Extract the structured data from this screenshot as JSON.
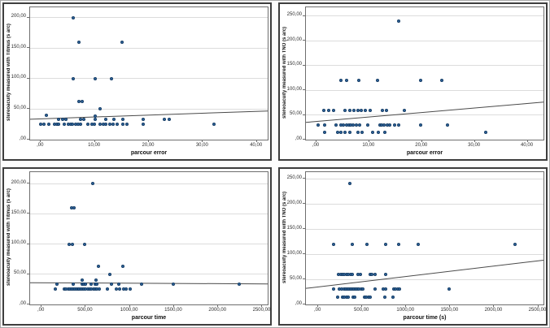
{
  "figure": {
    "description": "Grid of four SPSS-style scatterplots of stereoacuity versus parcour performance",
    "background_color": "#ffffff",
    "panel_border_color": "#3e3e3e",
    "grid_color": "#dcdcdc",
    "frame_color": "#6e6e6e",
    "point_fill_color": "#3168a0",
    "point_stroke_color": "#163d66",
    "fit_line_color": "#4a4a4a"
  },
  "chart_data": [
    {
      "type": "scatter",
      "title": "",
      "xlabel": "parcour error",
      "ylabel": "stereoacuity measured with Titmus (s arc)",
      "xlim": [
        -2,
        42
      ],
      "ylim": [
        0,
        217
      ],
      "grid": "horizontal",
      "legend": "none",
      "x_ticks": [
        {
          "v": 0,
          "label": ",00"
        },
        {
          "v": 10,
          "label": "10,00"
        },
        {
          "v": 20,
          "label": "20,00"
        },
        {
          "v": 30,
          "label": "30,00"
        },
        {
          "v": 40,
          "label": "40,00"
        }
      ],
      "y_ticks": [
        {
          "v": 0,
          "label": ",00"
        },
        {
          "v": 50,
          "label": "50,00"
        },
        {
          "v": 100,
          "label": "100,00"
        },
        {
          "v": 150,
          "label": "150,00"
        },
        {
          "v": 200,
          "label": "200,00"
        }
      ],
      "fit_line": {
        "x1": -2,
        "y1": 33.5,
        "x2": 42,
        "y2": 47
      },
      "points": [
        [
          6,
          200
        ],
        [
          7,
          160
        ],
        [
          15,
          160
        ],
        [
          6,
          100
        ],
        [
          10,
          100
        ],
        [
          13,
          100
        ],
        [
          7,
          63
        ],
        [
          7.6,
          63
        ],
        [
          11,
          50
        ],
        [
          1,
          40
        ],
        [
          10,
          39
        ],
        [
          3.2,
          33
        ],
        [
          4,
          33
        ],
        [
          4.7,
          33
        ],
        [
          7.4,
          33
        ],
        [
          8,
          33
        ],
        [
          10,
          33
        ],
        [
          12,
          33
        ],
        [
          13.5,
          33
        ],
        [
          15.2,
          33
        ],
        [
          19,
          33
        ],
        [
          22.8,
          33
        ],
        [
          23.8,
          33
        ],
        [
          0,
          25
        ],
        [
          0.6,
          25
        ],
        [
          1.4,
          25
        ],
        [
          2.5,
          25
        ],
        [
          2.9,
          25
        ],
        [
          3.3,
          25
        ],
        [
          4.3,
          25
        ],
        [
          5.1,
          25
        ],
        [
          5.5,
          25
        ],
        [
          5.9,
          25
        ],
        [
          6.5,
          25
        ],
        [
          6.9,
          25
        ],
        [
          7.4,
          25
        ],
        [
          8.7,
          25
        ],
        [
          9.4,
          25
        ],
        [
          9.9,
          25
        ],
        [
          10.9,
          25
        ],
        [
          11.6,
          25
        ],
        [
          12,
          25
        ],
        [
          12.7,
          25
        ],
        [
          13.3,
          25
        ],
        [
          14.1,
          25
        ],
        [
          15.2,
          25
        ],
        [
          15.9,
          25
        ],
        [
          19,
          25
        ],
        [
          32,
          25
        ]
      ]
    },
    {
      "type": "scatter",
      "title": "",
      "xlabel": "parcour error",
      "ylabel": "stereoacuity measured with TNO (s arc)",
      "xlim": [
        -2,
        43
      ],
      "ylim": [
        0,
        268
      ],
      "grid": "horizontal",
      "legend": "none",
      "x_ticks": [
        {
          "v": 0,
          "label": ",00"
        },
        {
          "v": 10,
          "label": "10,00"
        },
        {
          "v": 20,
          "label": "20,00"
        },
        {
          "v": 30,
          "label": "30,00"
        },
        {
          "v": 40,
          "label": "40,00"
        }
      ],
      "y_ticks": [
        {
          "v": 0,
          "label": ",00"
        },
        {
          "v": 50,
          "label": "50,00"
        },
        {
          "v": 100,
          "label": "100,00"
        },
        {
          "v": 150,
          "label": "150,00"
        },
        {
          "v": 200,
          "label": "200,00"
        },
        {
          "v": 250,
          "label": "250,00"
        }
      ],
      "fit_line": {
        "x1": -2,
        "y1": 35,
        "x2": 43,
        "y2": 76
      },
      "points": [
        [
          15.5,
          240
        ],
        [
          4.6,
          120
        ],
        [
          5.7,
          120
        ],
        [
          8,
          120
        ],
        [
          11.6,
          120
        ],
        [
          19.8,
          120
        ],
        [
          23.8,
          120
        ],
        [
          1.4,
          60
        ],
        [
          2.3,
          60
        ],
        [
          3.3,
          60
        ],
        [
          5.4,
          60
        ],
        [
          6.3,
          60
        ],
        [
          7.1,
          60
        ],
        [
          7.8,
          60
        ],
        [
          8.5,
          60
        ],
        [
          9.3,
          60
        ],
        [
          10.1,
          60
        ],
        [
          12.5,
          60
        ],
        [
          13.3,
          60
        ],
        [
          16.6,
          60
        ],
        [
          0.3,
          30
        ],
        [
          1.6,
          30
        ],
        [
          3.7,
          30
        ],
        [
          4.6,
          30
        ],
        [
          5.1,
          30
        ],
        [
          5.7,
          30
        ],
        [
          6.1,
          30
        ],
        [
          6.5,
          30
        ],
        [
          6.9,
          30
        ],
        [
          7.6,
          30
        ],
        [
          8.2,
          30
        ],
        [
          9.7,
          30
        ],
        [
          12,
          30
        ],
        [
          12.4,
          30
        ],
        [
          12.8,
          30
        ],
        [
          13.4,
          30
        ],
        [
          13.9,
          30
        ],
        [
          14.8,
          30
        ],
        [
          15.5,
          30
        ],
        [
          19.8,
          30
        ],
        [
          24.8,
          30
        ],
        [
          1.6,
          15
        ],
        [
          4,
          15
        ],
        [
          4.6,
          15
        ],
        [
          5.4,
          15
        ],
        [
          6.3,
          15
        ],
        [
          7.9,
          15
        ],
        [
          8.7,
          15
        ],
        [
          10.6,
          15
        ],
        [
          11.7,
          15
        ],
        [
          13,
          15
        ],
        [
          32,
          15
        ]
      ]
    },
    {
      "type": "scatter",
      "title": "",
      "xlabel": "parcour time",
      "ylabel": "stereoacuity measured with Titmus (s arc)",
      "xlim": [
        -130,
        2560
      ],
      "ylim": [
        0,
        219
      ],
      "grid": "horizontal",
      "legend": "none",
      "x_ticks": [
        {
          "v": 0,
          "label": ",00"
        },
        {
          "v": 500,
          "label": "500,00"
        },
        {
          "v": 1000,
          "label": "1000,00"
        },
        {
          "v": 1500,
          "label": "1500,00"
        },
        {
          "v": 2000,
          "label": "2000,00"
        },
        {
          "v": 2500,
          "label": "2500,00"
        }
      ],
      "y_ticks": [
        {
          "v": 0,
          "label": ",00"
        },
        {
          "v": 50,
          "label": "50,00"
        },
        {
          "v": 100,
          "label": "100,00"
        },
        {
          "v": 150,
          "label": "150,00"
        },
        {
          "v": 200,
          "label": "200,00"
        }
      ],
      "fit_line": {
        "x1": -130,
        "y1": 36,
        "x2": 2560,
        "y2": 34
      },
      "points": [
        [
          580,
          200
        ],
        [
          340,
          160
        ],
        [
          365,
          160
        ],
        [
          310,
          100
        ],
        [
          350,
          100
        ],
        [
          490,
          100
        ],
        [
          645,
          63
        ],
        [
          920,
          63
        ],
        [
          770,
          50
        ],
        [
          455,
          40
        ],
        [
          620,
          40
        ],
        [
          170,
          33
        ],
        [
          355,
          33
        ],
        [
          455,
          33
        ],
        [
          475,
          33
        ],
        [
          500,
          33
        ],
        [
          560,
          33
        ],
        [
          605,
          33
        ],
        [
          625,
          33
        ],
        [
          795,
          33
        ],
        [
          870,
          33
        ],
        [
          1130,
          33
        ],
        [
          1495,
          33
        ],
        [
          2235,
          33
        ],
        [
          155,
          25
        ],
        [
          258,
          25
        ],
        [
          279,
          25
        ],
        [
          300,
          25
        ],
        [
          318,
          25
        ],
        [
          336,
          25
        ],
        [
          355,
          25
        ],
        [
          373,
          25
        ],
        [
          391,
          25
        ],
        [
          409,
          25
        ],
        [
          427,
          25
        ],
        [
          445,
          25
        ],
        [
          464,
          25
        ],
        [
          482,
          25
        ],
        [
          500,
          25
        ],
        [
          522,
          25
        ],
        [
          543,
          25
        ],
        [
          564,
          25
        ],
        [
          585,
          25
        ],
        [
          606,
          25
        ],
        [
          627,
          25
        ],
        [
          652,
          25
        ],
        [
          743,
          25
        ],
        [
          845,
          25
        ],
        [
          885,
          25
        ],
        [
          925,
          25
        ],
        [
          961,
          25
        ],
        [
          1000,
          25
        ]
      ]
    },
    {
      "type": "scatter",
      "title": "",
      "xlabel": "parcour time (s)",
      "ylabel": "stereoacuity measured with TNO (s arc)",
      "xlim": [
        -140,
        2560
      ],
      "ylim": [
        0,
        263
      ],
      "grid": "horizontal",
      "legend": "none",
      "x_ticks": [
        {
          "v": 0,
          "label": ",00"
        },
        {
          "v": 500,
          "label": "500,00"
        },
        {
          "v": 1000,
          "label": "1000,00"
        },
        {
          "v": 1500,
          "label": "1500,00"
        },
        {
          "v": 2000,
          "label": "2000,00"
        },
        {
          "v": 2500,
          "label": "2500,00"
        }
      ],
      "y_ticks": [
        {
          "v": 0,
          "label": ",00"
        },
        {
          "v": 50,
          "label": "50,00"
        },
        {
          "v": 100,
          "label": "100,00"
        },
        {
          "v": 150,
          "label": "150,00"
        },
        {
          "v": 200,
          "label": "200,00"
        },
        {
          "v": 250,
          "label": "250,00"
        }
      ],
      "fit_line": {
        "x1": -140,
        "y1": 32,
        "x2": 2560,
        "y2": 88
      },
      "points": [
        [
          360,
          240
        ],
        [
          170,
          120
        ],
        [
          390,
          120
        ],
        [
          550,
          120
        ],
        [
          770,
          120
        ],
        [
          910,
          120
        ],
        [
          1135,
          120
        ],
        [
          2235,
          120
        ],
        [
          234,
          60
        ],
        [
          255,
          60
        ],
        [
          276,
          60
        ],
        [
          297,
          60
        ],
        [
          318,
          60
        ],
        [
          345,
          60
        ],
        [
          367,
          60
        ],
        [
          388,
          60
        ],
        [
          455,
          60
        ],
        [
          479,
          60
        ],
        [
          588,
          60
        ],
        [
          612,
          60
        ],
        [
          649,
          60
        ],
        [
          764,
          60
        ],
        [
          170,
          30
        ],
        [
          243,
          30
        ],
        [
          267,
          30
        ],
        [
          291,
          30
        ],
        [
          315,
          30
        ],
        [
          334,
          30
        ],
        [
          352,
          30
        ],
        [
          370,
          30
        ],
        [
          388,
          30
        ],
        [
          406,
          30
        ],
        [
          424,
          30
        ],
        [
          442,
          30
        ],
        [
          461,
          30
        ],
        [
          485,
          30
        ],
        [
          509,
          30
        ],
        [
          643,
          30
        ],
        [
          734,
          30
        ],
        [
          764,
          30
        ],
        [
          855,
          30
        ],
        [
          879,
          30
        ],
        [
          903,
          30
        ],
        [
          927,
          30
        ],
        [
          1491,
          30
        ],
        [
          225,
          15
        ],
        [
          273,
          15
        ],
        [
          297,
          15
        ],
        [
          321,
          15
        ],
        [
          345,
          15
        ],
        [
          394,
          15
        ],
        [
          418,
          15
        ],
        [
          522,
          15
        ],
        [
          546,
          15
        ],
        [
          570,
          15
        ],
        [
          594,
          15
        ],
        [
          758,
          15
        ],
        [
          849,
          15
        ]
      ]
    }
  ]
}
